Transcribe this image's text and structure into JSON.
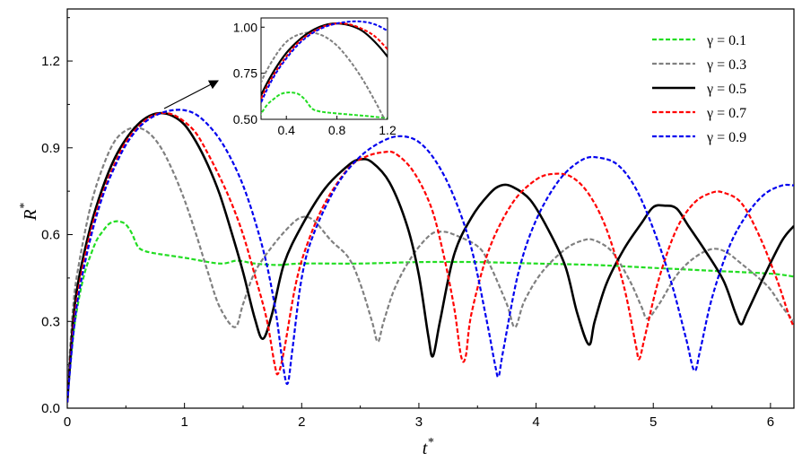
{
  "chart_data": {
    "type": "line",
    "xlabel": "t",
    "xlabel_sup": "*",
    "ylabel": "R",
    "ylabel_sup": "*",
    "xlim": [
      0,
      6.2
    ],
    "ylim": [
      0,
      1.38
    ],
    "x_ticks": [
      "0",
      "1",
      "2",
      "3",
      "4",
      "5",
      "6"
    ],
    "x_tick_values": [
      0,
      1,
      2,
      3,
      4,
      5,
      6
    ],
    "y_ticks": [
      "0.0",
      "0.3",
      "0.6",
      "0.9",
      "1.2"
    ],
    "y_tick_values": [
      0,
      0.3,
      0.6,
      0.9,
      1.2
    ],
    "grid": false,
    "legend_position": "top-right",
    "series": [
      {
        "name": "γ = 0.1",
        "color": "#22dd22",
        "dash": "dashed",
        "points": [
          [
            0,
            0.03
          ],
          [
            0.05,
            0.25
          ],
          [
            0.1,
            0.38
          ],
          [
            0.15,
            0.47
          ],
          [
            0.2,
            0.53
          ],
          [
            0.25,
            0.58
          ],
          [
            0.3,
            0.61
          ],
          [
            0.35,
            0.635
          ],
          [
            0.4,
            0.645
          ],
          [
            0.45,
            0.645
          ],
          [
            0.5,
            0.635
          ],
          [
            0.55,
            0.605
          ],
          [
            0.6,
            0.56
          ],
          [
            0.65,
            0.545
          ],
          [
            0.75,
            0.535
          ],
          [
            1.0,
            0.52
          ],
          [
            1.3,
            0.5
          ],
          [
            1.45,
            0.51
          ],
          [
            1.6,
            0.5
          ],
          [
            1.8,
            0.495
          ],
          [
            2.0,
            0.5
          ],
          [
            2.5,
            0.5
          ],
          [
            3.0,
            0.505
          ],
          [
            3.5,
            0.505
          ],
          [
            4.0,
            0.5
          ],
          [
            4.5,
            0.495
          ],
          [
            5.0,
            0.485
          ],
          [
            5.5,
            0.475
          ],
          [
            6.0,
            0.465
          ],
          [
            6.2,
            0.455
          ]
        ]
      },
      {
        "name": "γ = 0.3",
        "color": "#808080",
        "dash": "dashed",
        "points": [
          [
            0,
            0.05
          ],
          [
            0.05,
            0.35
          ],
          [
            0.1,
            0.5
          ],
          [
            0.2,
            0.7
          ],
          [
            0.3,
            0.83
          ],
          [
            0.4,
            0.92
          ],
          [
            0.5,
            0.96
          ],
          [
            0.6,
            0.97
          ],
          [
            0.7,
            0.95
          ],
          [
            0.8,
            0.9
          ],
          [
            0.9,
            0.82
          ],
          [
            1.0,
            0.72
          ],
          [
            1.1,
            0.6
          ],
          [
            1.2,
            0.47
          ],
          [
            1.3,
            0.35
          ],
          [
            1.43,
            0.28
          ],
          [
            1.5,
            0.36
          ],
          [
            1.6,
            0.47
          ],
          [
            1.75,
            0.56
          ],
          [
            1.9,
            0.63
          ],
          [
            2.0,
            0.66
          ],
          [
            2.1,
            0.65
          ],
          [
            2.25,
            0.58
          ],
          [
            2.4,
            0.52
          ],
          [
            2.5,
            0.43
          ],
          [
            2.6,
            0.3
          ],
          [
            2.65,
            0.23
          ],
          [
            2.7,
            0.3
          ],
          [
            2.8,
            0.42
          ],
          [
            2.95,
            0.53
          ],
          [
            3.1,
            0.6
          ],
          [
            3.2,
            0.61
          ],
          [
            3.3,
            0.6
          ],
          [
            3.5,
            0.56
          ],
          [
            3.6,
            0.5
          ],
          [
            3.75,
            0.36
          ],
          [
            3.82,
            0.28
          ],
          [
            3.9,
            0.37
          ],
          [
            4.05,
            0.47
          ],
          [
            4.25,
            0.55
          ],
          [
            4.4,
            0.58
          ],
          [
            4.5,
            0.58
          ],
          [
            4.65,
            0.54
          ],
          [
            4.8,
            0.44
          ],
          [
            4.9,
            0.35
          ],
          [
            4.95,
            0.31
          ],
          [
            5.05,
            0.36
          ],
          [
            5.2,
            0.46
          ],
          [
            5.35,
            0.52
          ],
          [
            5.5,
            0.55
          ],
          [
            5.62,
            0.54
          ],
          [
            5.75,
            0.5
          ],
          [
            5.9,
            0.45
          ],
          [
            6.0,
            0.41
          ],
          [
            6.1,
            0.35
          ],
          [
            6.2,
            0.3
          ]
        ]
      },
      {
        "name": "γ = 0.5",
        "color": "#000000",
        "dash": "solid",
        "points": [
          [
            0,
            0.02
          ],
          [
            0.05,
            0.3
          ],
          [
            0.1,
            0.45
          ],
          [
            0.2,
            0.63
          ],
          [
            0.3,
            0.76
          ],
          [
            0.4,
            0.86
          ],
          [
            0.5,
            0.93
          ],
          [
            0.6,
            0.98
          ],
          [
            0.7,
            1.01
          ],
          [
            0.8,
            1.02
          ],
          [
            0.9,
            1.01
          ],
          [
            1.0,
            0.98
          ],
          [
            1.1,
            0.92
          ],
          [
            1.2,
            0.84
          ],
          [
            1.3,
            0.74
          ],
          [
            1.4,
            0.61
          ],
          [
            1.5,
            0.47
          ],
          [
            1.6,
            0.31
          ],
          [
            1.67,
            0.24
          ],
          [
            1.75,
            0.33
          ],
          [
            1.85,
            0.5
          ],
          [
            2.0,
            0.63
          ],
          [
            2.2,
            0.76
          ],
          [
            2.4,
            0.84
          ],
          [
            2.5,
            0.86
          ],
          [
            2.6,
            0.85
          ],
          [
            2.75,
            0.78
          ],
          [
            2.9,
            0.63
          ],
          [
            3.0,
            0.46
          ],
          [
            3.08,
            0.25
          ],
          [
            3.12,
            0.18
          ],
          [
            3.18,
            0.3
          ],
          [
            3.3,
            0.53
          ],
          [
            3.45,
            0.66
          ],
          [
            3.6,
            0.74
          ],
          [
            3.7,
            0.77
          ],
          [
            3.8,
            0.765
          ],
          [
            3.95,
            0.72
          ],
          [
            4.1,
            0.62
          ],
          [
            4.25,
            0.49
          ],
          [
            4.35,
            0.33
          ],
          [
            4.45,
            0.22
          ],
          [
            4.5,
            0.3
          ],
          [
            4.6,
            0.43
          ],
          [
            4.75,
            0.55
          ],
          [
            4.9,
            0.64
          ],
          [
            5.0,
            0.695
          ],
          [
            5.1,
            0.7
          ],
          [
            5.2,
            0.69
          ],
          [
            5.3,
            0.63
          ],
          [
            5.45,
            0.54
          ],
          [
            5.6,
            0.44
          ],
          [
            5.7,
            0.33
          ],
          [
            5.75,
            0.29
          ],
          [
            5.8,
            0.33
          ],
          [
            5.95,
            0.46
          ],
          [
            6.1,
            0.58
          ],
          [
            6.2,
            0.63
          ]
        ]
      },
      {
        "name": "γ = 0.7",
        "color": "#ff0000",
        "dash": "dashed",
        "points": [
          [
            0,
            0.02
          ],
          [
            0.05,
            0.27
          ],
          [
            0.1,
            0.42
          ],
          [
            0.2,
            0.61
          ],
          [
            0.3,
            0.74
          ],
          [
            0.4,
            0.84
          ],
          [
            0.5,
            0.92
          ],
          [
            0.6,
            0.97
          ],
          [
            0.7,
            1.005
          ],
          [
            0.8,
            1.02
          ],
          [
            0.9,
            1.015
          ],
          [
            1.0,
            0.99
          ],
          [
            1.1,
            0.95
          ],
          [
            1.2,
            0.88
          ],
          [
            1.3,
            0.8
          ],
          [
            1.4,
            0.71
          ],
          [
            1.5,
            0.6
          ],
          [
            1.6,
            0.46
          ],
          [
            1.7,
            0.31
          ],
          [
            1.77,
            0.15
          ],
          [
            1.8,
            0.12
          ],
          [
            1.85,
            0.2
          ],
          [
            1.95,
            0.43
          ],
          [
            2.05,
            0.57
          ],
          [
            2.2,
            0.71
          ],
          [
            2.4,
            0.83
          ],
          [
            2.55,
            0.87
          ],
          [
            2.7,
            0.885
          ],
          [
            2.8,
            0.88
          ],
          [
            2.95,
            0.82
          ],
          [
            3.1,
            0.7
          ],
          [
            3.2,
            0.55
          ],
          [
            3.3,
            0.35
          ],
          [
            3.36,
            0.18
          ],
          [
            3.4,
            0.18
          ],
          [
            3.45,
            0.33
          ],
          [
            3.6,
            0.55
          ],
          [
            3.8,
            0.71
          ],
          [
            4.0,
            0.79
          ],
          [
            4.15,
            0.81
          ],
          [
            4.3,
            0.8
          ],
          [
            4.45,
            0.74
          ],
          [
            4.6,
            0.62
          ],
          [
            4.75,
            0.42
          ],
          [
            4.85,
            0.22
          ],
          [
            4.88,
            0.17
          ],
          [
            4.93,
            0.25
          ],
          [
            5.05,
            0.45
          ],
          [
            5.2,
            0.62
          ],
          [
            5.35,
            0.71
          ],
          [
            5.5,
            0.745
          ],
          [
            5.6,
            0.745
          ],
          [
            5.75,
            0.71
          ],
          [
            5.9,
            0.6
          ],
          [
            6.05,
            0.45
          ],
          [
            6.15,
            0.33
          ],
          [
            6.2,
            0.28
          ]
        ]
      },
      {
        "name": "γ = 0.9",
        "color": "#0000ee",
        "dash": "dashed",
        "points": [
          [
            0,
            0.02
          ],
          [
            0.05,
            0.25
          ],
          [
            0.1,
            0.4
          ],
          [
            0.2,
            0.59
          ],
          [
            0.3,
            0.73
          ],
          [
            0.4,
            0.83
          ],
          [
            0.5,
            0.91
          ],
          [
            0.6,
            0.965
          ],
          [
            0.7,
            1.0
          ],
          [
            0.8,
            1.02
          ],
          [
            0.9,
            1.03
          ],
          [
            1.0,
            1.03
          ],
          [
            1.1,
            1.015
          ],
          [
            1.2,
            0.98
          ],
          [
            1.3,
            0.93
          ],
          [
            1.4,
            0.86
          ],
          [
            1.5,
            0.77
          ],
          [
            1.6,
            0.65
          ],
          [
            1.7,
            0.5
          ],
          [
            1.78,
            0.33
          ],
          [
            1.84,
            0.15
          ],
          [
            1.88,
            0.085
          ],
          [
            1.92,
            0.2
          ],
          [
            2.0,
            0.45
          ],
          [
            2.1,
            0.6
          ],
          [
            2.3,
            0.77
          ],
          [
            2.5,
            0.87
          ],
          [
            2.7,
            0.925
          ],
          [
            2.85,
            0.94
          ],
          [
            3.0,
            0.92
          ],
          [
            3.15,
            0.85
          ],
          [
            3.3,
            0.73
          ],
          [
            3.45,
            0.55
          ],
          [
            3.58,
            0.3
          ],
          [
            3.65,
            0.15
          ],
          [
            3.68,
            0.11
          ],
          [
            3.72,
            0.2
          ],
          [
            3.85,
            0.47
          ],
          [
            4.0,
            0.65
          ],
          [
            4.2,
            0.79
          ],
          [
            4.4,
            0.86
          ],
          [
            4.55,
            0.865
          ],
          [
            4.7,
            0.84
          ],
          [
            4.85,
            0.76
          ],
          [
            5.0,
            0.62
          ],
          [
            5.15,
            0.44
          ],
          [
            5.28,
            0.24
          ],
          [
            5.35,
            0.13
          ],
          [
            5.4,
            0.2
          ],
          [
            5.5,
            0.38
          ],
          [
            5.65,
            0.56
          ],
          [
            5.8,
            0.67
          ],
          [
            5.95,
            0.74
          ],
          [
            6.1,
            0.77
          ],
          [
            6.2,
            0.77
          ]
        ]
      }
    ],
    "inset": {
      "xlim": [
        0.2,
        1.2
      ],
      "ylim": [
        0.5,
        1.05
      ],
      "x_ticks": [
        "0.4",
        "0.8",
        "1.2"
      ],
      "x_tick_values": [
        0.4,
        0.8,
        1.2
      ],
      "y_ticks": [
        "0.50",
        "0.75",
        "1.00"
      ],
      "y_tick_values": [
        0.5,
        0.75,
        1.0
      ]
    }
  }
}
